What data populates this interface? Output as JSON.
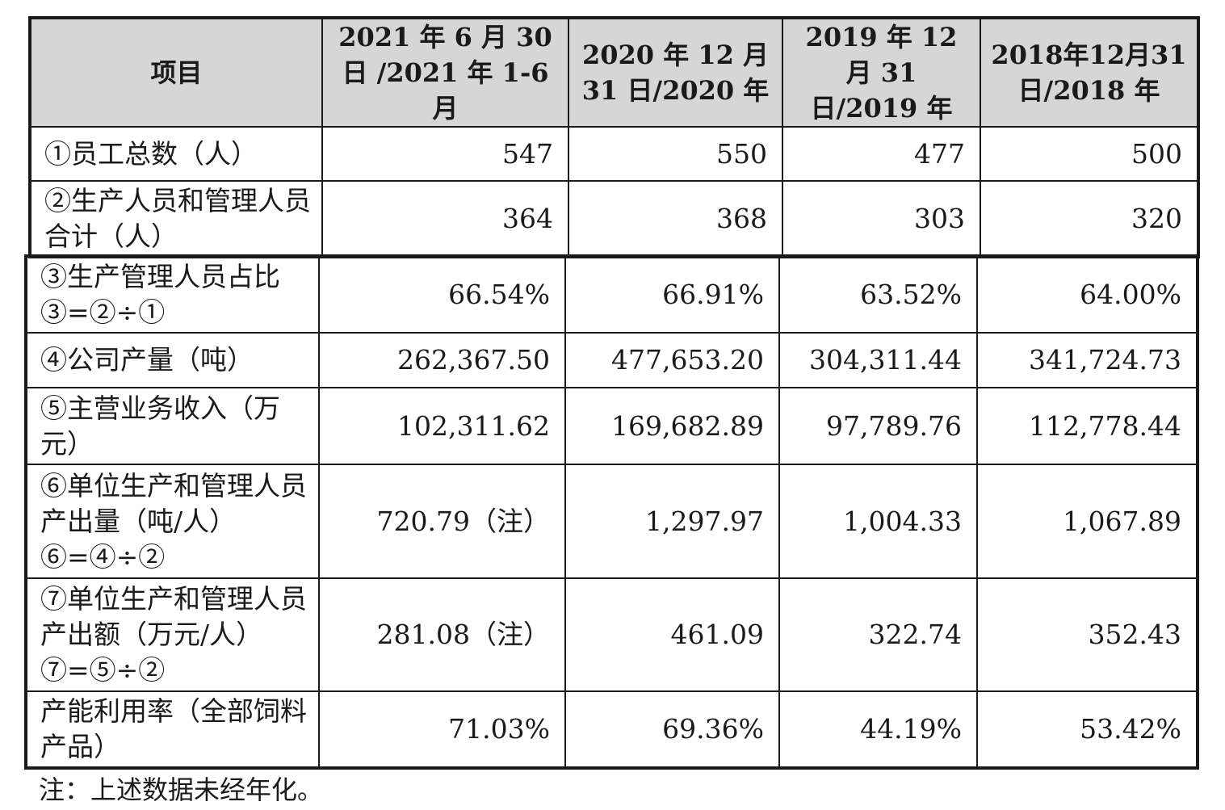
{
  "headers": [
    "项目",
    "2021 年 6 月 30 日 /2021 年 1-6 月",
    "2020 年 12 月 31 日/2020 年",
    "2019 年 12 月 31 日/2019 年",
    "2018年12月31 日/2018 年"
  ],
  "top_rows": [
    {
      "label": "①员工总数（人）",
      "values": [
        "547",
        "550",
        "477",
        "500"
      ]
    },
    {
      "label": "②生产人员和管理人员合计（人）",
      "values": [
        "364",
        "368",
        "303",
        "320"
      ]
    }
  ],
  "bottom_rows": [
    {
      "label": "③生产管理人员占比 ③=②÷①",
      "values": [
        "66.54%",
        "66.91%",
        "63.52%",
        "64.00%"
      ]
    },
    {
      "label": "④公司产量（吨）",
      "values": [
        "262,367.50",
        "477,653.20",
        "304,311.44",
        "341,724.73"
      ]
    },
    {
      "label": "⑤主营业务收入（万元）",
      "values": [
        "102,311.62",
        "169,682.89",
        "97,789.76",
        "112,778.44"
      ]
    },
    {
      "label": "⑥单位生产和管理人员产出量（吨/人） ⑥=④÷②",
      "values": [
        "720.79（注）",
        "1,297.97",
        "1,004.33",
        "1,067.89"
      ]
    },
    {
      "label": "⑦单位生产和管理人员产出额（万元/人） ⑦=⑤÷②",
      "values": [
        "281.08（注）",
        "461.09",
        "322.74",
        "352.43"
      ]
    },
    {
      "label": "产能利用率（全部饲料产品）",
      "values": [
        "71.03%",
        "69.36%",
        "44.19%",
        "53.42%"
      ]
    }
  ],
  "note": "注：上述数据未经年化。"
}
